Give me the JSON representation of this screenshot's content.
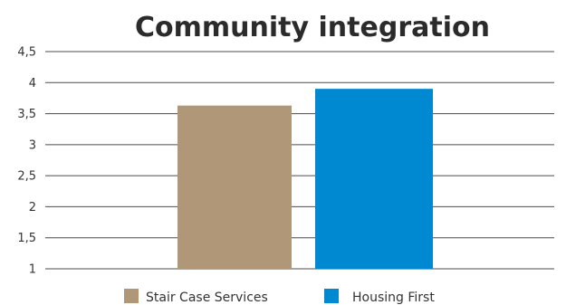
{
  "chart_data": {
    "type": "bar",
    "title": "Community integration",
    "xlabel": "",
    "ylabel": "",
    "ylim": [
      1,
      4.5
    ],
    "yticks": [
      1,
      1.5,
      2,
      2.5,
      3,
      3.5,
      4,
      4.5
    ],
    "ytick_labels": [
      "1",
      "1,5",
      "2",
      "2,5",
      "3",
      "3,5",
      "4",
      "4,5"
    ],
    "grid": true,
    "legend": "bottom",
    "series": [
      {
        "name": "Stair Case Services",
        "values": [
          3.63
        ],
        "color": "#b09777"
      },
      {
        "name": "Housing First",
        "values": [
          3.9
        ],
        "color": "#0089d0"
      }
    ]
  }
}
